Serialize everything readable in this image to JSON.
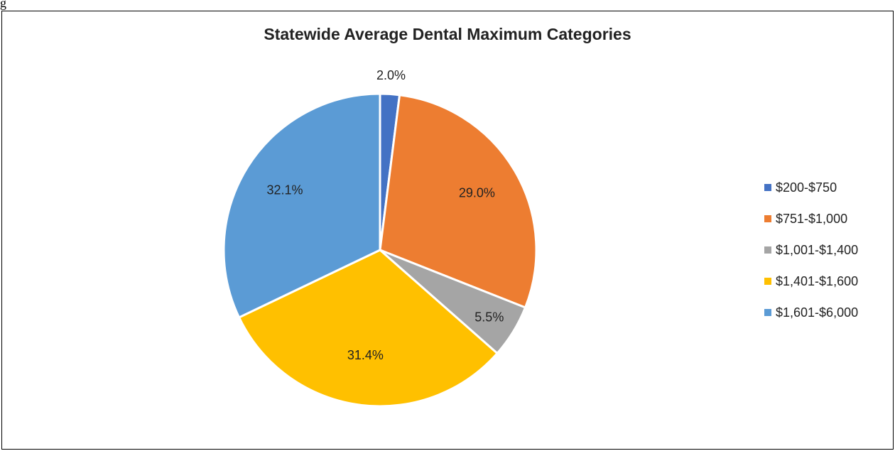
{
  "page": {
    "fragment_text": "g"
  },
  "chart_data": {
    "type": "pie",
    "title": "Statewide Average Dental Maximum Categories",
    "start_angle_deg": 0,
    "direction": "clockwise",
    "legend_position": "right",
    "slices": [
      {
        "category": "$200-$750",
        "value": 2.0,
        "label": "2.0%",
        "color": "#4472C4"
      },
      {
        "category": "$751-$1,000",
        "value": 29.0,
        "label": "29.0%",
        "color": "#ED7D31"
      },
      {
        "category": "$1,001-$1,400",
        "value": 5.5,
        "label": "5.5%",
        "color": "#A5A5A5"
      },
      {
        "category": "$1,401-$1,600",
        "value": 31.4,
        "label": "31.4%",
        "color": "#FFC000"
      },
      {
        "category": "$1,601-$6,000",
        "value": 32.1,
        "label": "32.1%",
        "color": "#5B9BD5"
      }
    ]
  }
}
